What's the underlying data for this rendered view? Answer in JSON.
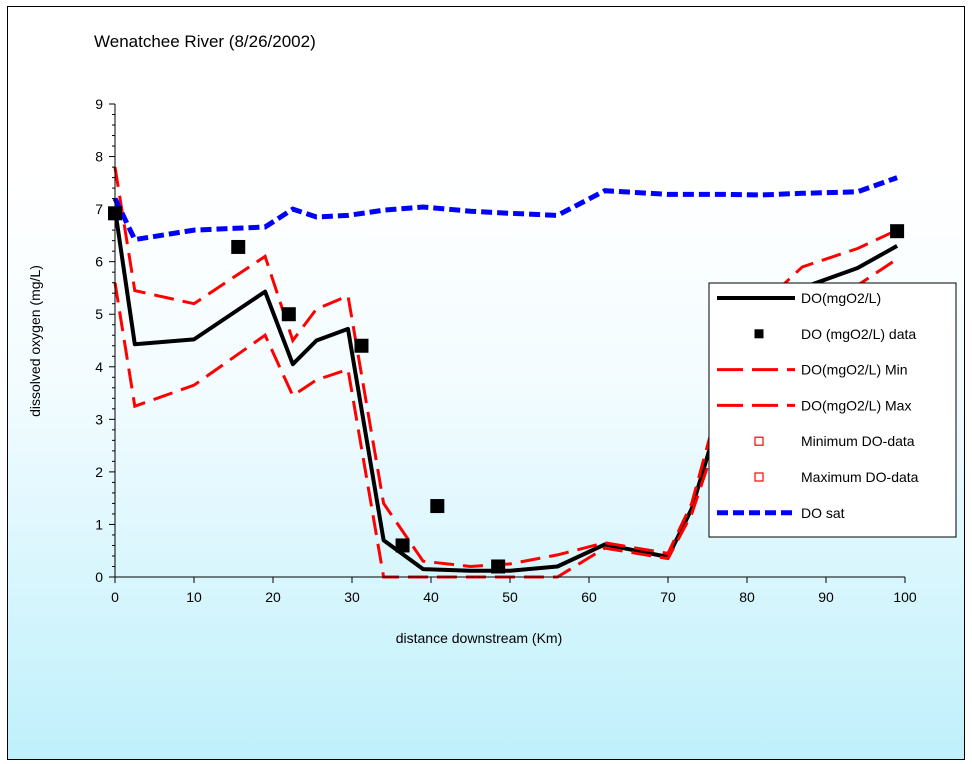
{
  "chart_data": {
    "type": "line",
    "title": "Wenatchee River (8/26/2002)",
    "xlabel": "distance downstream (Km)",
    "ylabel": "dissolved oxygen (mg/L)",
    "xlim": [
      0,
      100
    ],
    "ylim": [
      0,
      9
    ],
    "x_ticks": [
      "0",
      "10",
      "20",
      "30",
      "40",
      "50",
      "60",
      "70",
      "80",
      "90",
      "100"
    ],
    "y_ticks": [
      "0",
      "1",
      "2",
      "3",
      "4",
      "5",
      "6",
      "7",
      "8",
      "9"
    ],
    "grid": false,
    "legend_position": "right",
    "series": [
      {
        "name": "DO(mgO2/L)",
        "style": "solid-line",
        "color": "#000000",
        "x": [
          0,
          2.5,
          10,
          19,
          22.5,
          25.5,
          29.5,
          34,
          39,
          45,
          50,
          56,
          62,
          70,
          73,
          77,
          82,
          87,
          94,
          99
        ],
        "y": [
          7.0,
          4.43,
          4.52,
          5.43,
          4.05,
          4.5,
          4.72,
          0.7,
          0.15,
          0.12,
          0.12,
          0.2,
          0.62,
          0.38,
          1.3,
          3.3,
          4.8,
          5.5,
          5.88,
          6.3
        ]
      },
      {
        "name": "DO (mgO2/L) data",
        "style": "marker-filled-square",
        "color": "#000000",
        "x": [
          0,
          15.6,
          22,
          31.2,
          36.4,
          40.8,
          48.5,
          99
        ],
        "y": [
          6.92,
          6.28,
          5.0,
          4.4,
          0.6,
          1.35,
          0.2,
          6.58
        ]
      },
      {
        "name": "DO(mgO2/L) Min",
        "style": "dashed-line",
        "color": "#ff0000",
        "x": [
          0,
          2.5,
          10,
          19,
          22.5,
          25.5,
          29.5,
          34,
          39,
          45,
          50,
          56,
          62,
          70,
          73,
          77,
          82,
          87,
          94,
          99
        ],
        "y": [
          5.6,
          3.25,
          3.65,
          4.6,
          3.45,
          3.75,
          3.95,
          0,
          0,
          0,
          0,
          0,
          0.55,
          0.35,
          1.2,
          3.0,
          4.4,
          5.0,
          5.55,
          6.05
        ]
      },
      {
        "name": "DO(mgO2/L) Max",
        "style": "dashed-line",
        "color": "#ff0000",
        "x": [
          0,
          2.5,
          10,
          19,
          22.5,
          25.5,
          29.5,
          34,
          39,
          45,
          50,
          56,
          62,
          70,
          73,
          77,
          82,
          87,
          94,
          99
        ],
        "y": [
          7.8,
          5.45,
          5.2,
          6.1,
          4.5,
          5.1,
          5.35,
          1.4,
          0.3,
          0.2,
          0.25,
          0.42,
          0.65,
          0.45,
          1.4,
          3.6,
          5.2,
          5.9,
          6.25,
          6.6
        ]
      },
      {
        "name": "Minimum DO-data",
        "style": "marker-open-square",
        "color": "#ff0000",
        "x": [],
        "y": []
      },
      {
        "name": "Maximum DO-data",
        "style": "marker-open-square",
        "color": "#ff0000",
        "x": [],
        "y": []
      },
      {
        "name": "DO sat",
        "style": "dotted-line",
        "color": "#0000ff",
        "x": [
          0,
          2.5,
          10,
          19,
          22.5,
          25.5,
          29.5,
          34,
          39,
          45,
          50,
          56,
          62,
          70,
          73,
          77,
          82,
          87,
          94,
          99
        ],
        "y": [
          7.2,
          6.42,
          6.6,
          6.66,
          7.0,
          6.85,
          6.88,
          6.98,
          7.04,
          6.96,
          6.92,
          6.88,
          7.35,
          7.28,
          7.28,
          7.28,
          7.27,
          7.3,
          7.33,
          7.6
        ]
      }
    ]
  }
}
